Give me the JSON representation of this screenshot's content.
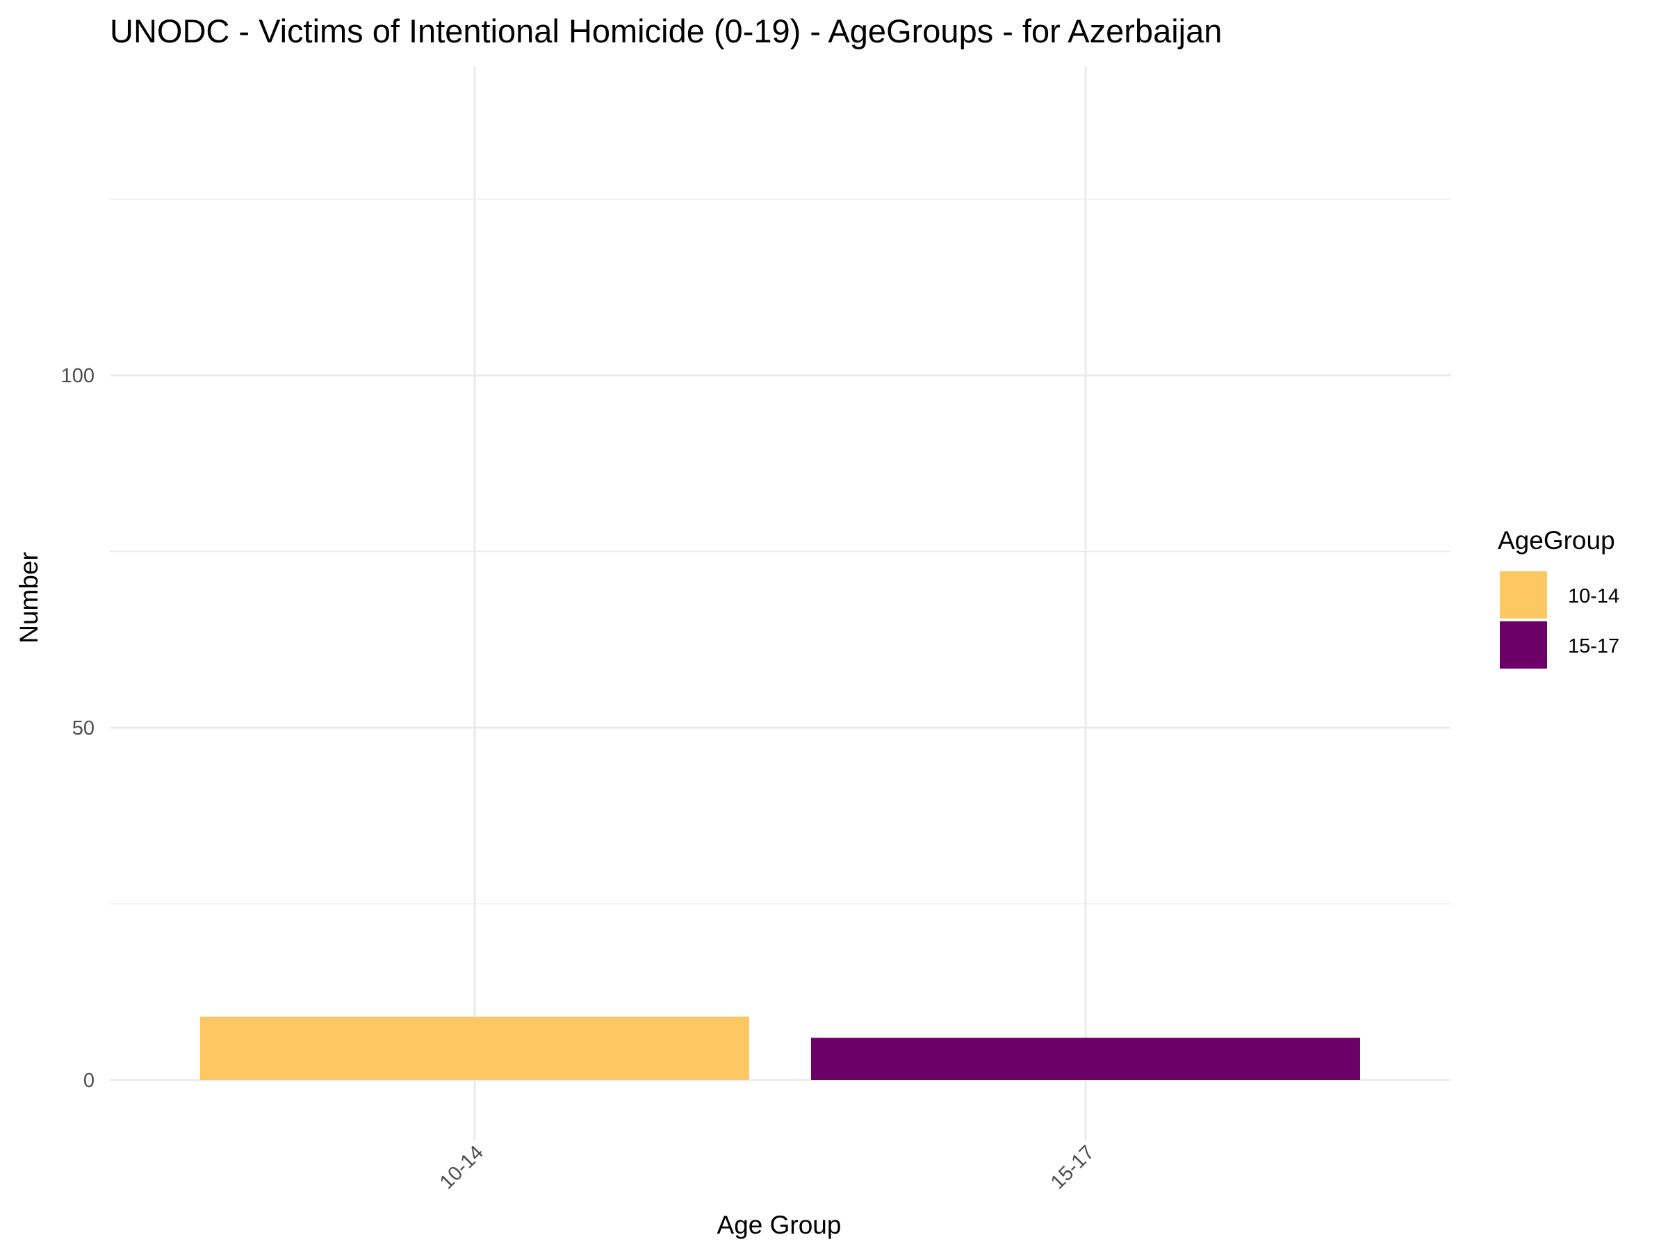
{
  "chart_data": {
    "type": "bar",
    "title": "UNODC - Victims of Intentional Homicide (0-19) - AgeGroups - for Azerbaijan",
    "xlabel": "Age Group",
    "ylabel": "Number",
    "categories": [
      "10-14",
      "15-17"
    ],
    "values": [
      9,
      6
    ],
    "colors": [
      "#FDC762",
      "#6A0068"
    ],
    "ylim": [
      -8.4,
      132
    ],
    "yticks": [
      0,
      50,
      100
    ],
    "grid": true,
    "legend": {
      "title": "AgeGroup",
      "position": "right",
      "entries": [
        {
          "label": "10-14",
          "color": "#FDC762"
        },
        {
          "label": "15-17",
          "color": "#6A0068"
        }
      ]
    }
  }
}
